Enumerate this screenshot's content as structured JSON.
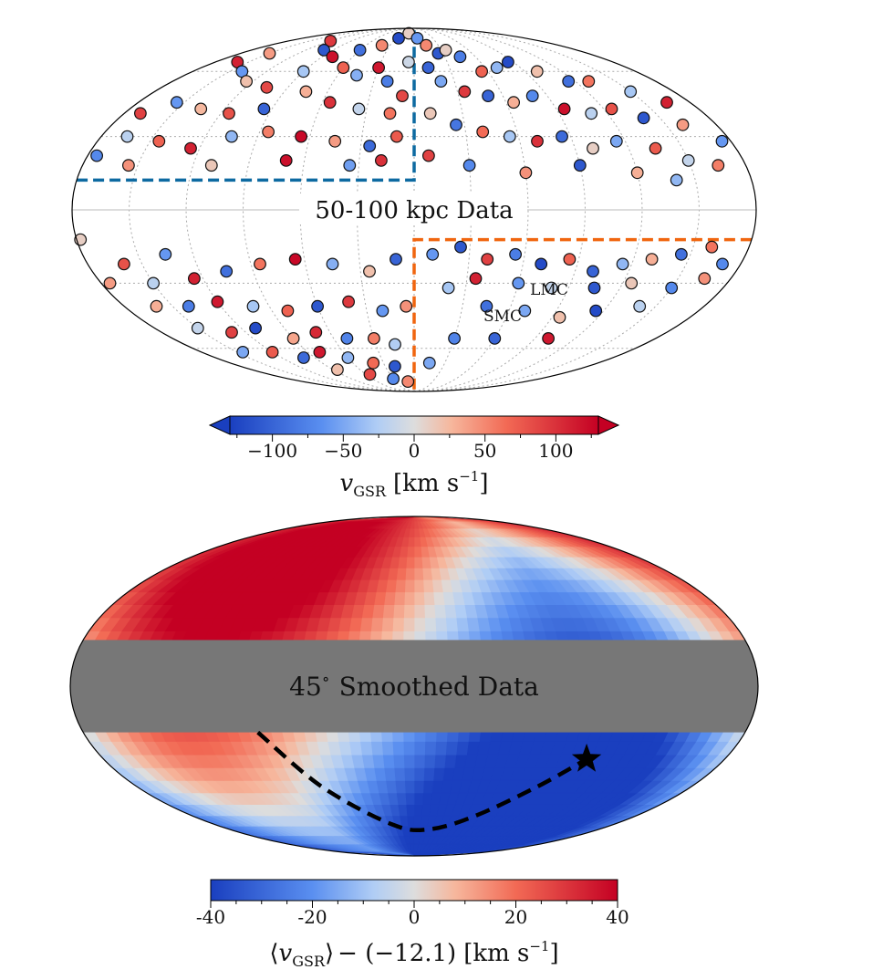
{
  "chart_data": [
    {
      "type": "scatter",
      "title": "50-100 kpc Data",
      "projection": "mollweide",
      "grid": true,
      "annotations": [
        "LMC",
        "SMC"
      ],
      "colorbar": {
        "label_main": "v",
        "label_sub": "GSR",
        "label_units": "[km s",
        "label_exp": "−1",
        "label_close": "]",
        "vmin": -130,
        "vmax": 130,
        "ticks": [
          -100,
          -50,
          0,
          50,
          100
        ],
        "tick_labels": [
          "−100",
          "−50",
          "0",
          "50",
          "100"
        ],
        "extend": "both"
      },
      "regions": [
        {
          "name": "north-west",
          "color": "#0d6aa1",
          "l_range": [
            0,
            180
          ],
          "b_range": [
            0,
            90
          ]
        },
        {
          "name": "south-east",
          "color": "#f0650f",
          "l_range": [
            -180,
            0
          ],
          "b_range": [
            -90,
            0
          ]
        }
      ],
      "points": [
        {
          "l": 120,
          "b": 78,
          "v": 95
        },
        {
          "l": 100,
          "b": 72,
          "v": -110
        },
        {
          "l": 150,
          "b": 70,
          "v": 40
        },
        {
          "l": 160,
          "b": 65,
          "v": 110
        },
        {
          "l": 140,
          "b": 60,
          "v": -60
        },
        {
          "l": 125,
          "b": 55,
          "v": 20
        },
        {
          "l": 105,
          "b": 52,
          "v": 85
        },
        {
          "l": 90,
          "b": 60,
          "v": -30
        },
        {
          "l": 80,
          "b": 68,
          "v": 120
        },
        {
          "l": 60,
          "b": 72,
          "v": -90
        },
        {
          "l": 40,
          "b": 75,
          "v": 50
        },
        {
          "l": 25,
          "b": 80,
          "v": -120
        },
        {
          "l": 12,
          "b": 84,
          "v": 10
        },
        {
          "l": 60,
          "b": 62,
          "v": 70
        },
        {
          "l": 45,
          "b": 58,
          "v": -45
        },
        {
          "l": 30,
          "b": 62,
          "v": 115
        },
        {
          "l": 20,
          "b": 55,
          "v": -80
        },
        {
          "l": 75,
          "b": 50,
          "v": 30
        },
        {
          "l": 55,
          "b": 45,
          "v": 100
        },
        {
          "l": 35,
          "b": 42,
          "v": -15
        },
        {
          "l": 15,
          "b": 40,
          "v": 60
        },
        {
          "l": 95,
          "b": 42,
          "v": -100
        },
        {
          "l": 115,
          "b": 40,
          "v": 80
        },
        {
          "l": 135,
          "b": 42,
          "v": 25
        },
        {
          "l": 155,
          "b": 45,
          "v": -60
        },
        {
          "l": 170,
          "b": 40,
          "v": 90
        },
        {
          "l": 165,
          "b": 30,
          "v": -20
        },
        {
          "l": 145,
          "b": 28,
          "v": 70
        },
        {
          "l": 125,
          "b": 25,
          "v": 110
        },
        {
          "l": 105,
          "b": 30,
          "v": -40
        },
        {
          "l": 85,
          "b": 32,
          "v": 55
        },
        {
          "l": 65,
          "b": 30,
          "v": 125
        },
        {
          "l": 45,
          "b": 28,
          "v": 40
        },
        {
          "l": 25,
          "b": 26,
          "v": -95
        },
        {
          "l": 10,
          "b": 30,
          "v": 75
        },
        {
          "l": 175,
          "b": 22,
          "v": -70
        },
        {
          "l": 155,
          "b": 18,
          "v": 45
        },
        {
          "l": 110,
          "b": 18,
          "v": 15
        },
        {
          "l": 70,
          "b": 20,
          "v": 120
        },
        {
          "l": 35,
          "b": 18,
          "v": -55
        },
        {
          "l": 18,
          "b": 20,
          "v": 100
        },
        {
          "l": 5,
          "b": 65,
          "v": -10
        },
        {
          "l": 8,
          "b": 48,
          "v": 85
        },
        {
          "l": -5,
          "b": 80,
          "v": -60
        },
        {
          "l": -15,
          "b": 75,
          "v": 50
        },
        {
          "l": -25,
          "b": 70,
          "v": -110
        },
        {
          "l": -35,
          "b": 72,
          "v": 10
        },
        {
          "l": -45,
          "b": 68,
          "v": -80
        },
        {
          "l": -55,
          "b": 60,
          "v": 70
        },
        {
          "l": -70,
          "b": 62,
          "v": -40
        },
        {
          "l": -85,
          "b": 65,
          "v": -120
        },
        {
          "l": -100,
          "b": 60,
          "v": 20
        },
        {
          "l": -115,
          "b": 55,
          "v": -90
        },
        {
          "l": -130,
          "b": 55,
          "v": 60
        },
        {
          "l": -150,
          "b": 50,
          "v": -30
        },
        {
          "l": -165,
          "b": 45,
          "v": 110
        },
        {
          "l": -20,
          "b": 55,
          "v": -50
        },
        {
          "l": -35,
          "b": 50,
          "v": 95
        },
        {
          "l": -50,
          "b": 48,
          "v": -100
        },
        {
          "l": -65,
          "b": 45,
          "v": 30
        },
        {
          "l": -80,
          "b": 48,
          "v": -70
        },
        {
          "l": -95,
          "b": 42,
          "v": 120
        },
        {
          "l": -110,
          "b": 40,
          "v": -20
        },
        {
          "l": -125,
          "b": 42,
          "v": 80
        },
        {
          "l": -140,
          "b": 38,
          "v": -110
        },
        {
          "l": -160,
          "b": 35,
          "v": 40
        },
        {
          "l": -175,
          "b": 28,
          "v": -60
        },
        {
          "l": -10,
          "b": 40,
          "v": 15
        },
        {
          "l": -25,
          "b": 35,
          "v": -85
        },
        {
          "l": -40,
          "b": 32,
          "v": 65
        },
        {
          "l": -55,
          "b": 30,
          "v": -30
        },
        {
          "l": -70,
          "b": 28,
          "v": 100
        },
        {
          "l": -85,
          "b": 30,
          "v": -95
        },
        {
          "l": -100,
          "b": 25,
          "v": 10
        },
        {
          "l": -115,
          "b": 28,
          "v": -50
        },
        {
          "l": -135,
          "b": 25,
          "v": 75
        },
        {
          "l": -150,
          "b": 20,
          "v": -15
        },
        {
          "l": -165,
          "b": 18,
          "v": 55
        },
        {
          "l": -30,
          "b": 18,
          "v": -70
        },
        {
          "l": -60,
          "b": 15,
          "v": 45
        },
        {
          "l": -90,
          "b": 18,
          "v": -110
        },
        {
          "l": -120,
          "b": 15,
          "v": 30
        },
        {
          "l": -140,
          "b": 12,
          "v": -40
        },
        {
          "l": -8,
          "b": 22,
          "v": 90
        },
        {
          "l": -12,
          "b": 62,
          "v": -100
        },
        {
          "l": 135,
          "b": -18,
          "v": -60
        },
        {
          "l": 160,
          "b": -22,
          "v": 80
        },
        {
          "l": 175,
          "b": -30,
          "v": 40
        },
        {
          "l": 150,
          "b": -30,
          "v": -20
        },
        {
          "l": 125,
          "b": -28,
          "v": 110
        },
        {
          "l": 105,
          "b": -25,
          "v": -90
        },
        {
          "l": 85,
          "b": -22,
          "v": 60
        },
        {
          "l": 65,
          "b": -20,
          "v": 125
        },
        {
          "l": 45,
          "b": -22,
          "v": -45
        },
        {
          "l": 25,
          "b": -25,
          "v": 20
        },
        {
          "l": 10,
          "b": -20,
          "v": -100
        },
        {
          "l": 160,
          "b": -40,
          "v": 30
        },
        {
          "l": 140,
          "b": -40,
          "v": -80
        },
        {
          "l": 120,
          "b": -38,
          "v": 115
        },
        {
          "l": 100,
          "b": -40,
          "v": -30
        },
        {
          "l": 80,
          "b": -42,
          "v": 70
        },
        {
          "l": 60,
          "b": -40,
          "v": -110
        },
        {
          "l": 40,
          "b": -38,
          "v": 95
        },
        {
          "l": 20,
          "b": -42,
          "v": -60
        },
        {
          "l": 5,
          "b": -40,
          "v": 45
        },
        {
          "l": 150,
          "b": -50,
          "v": -15
        },
        {
          "l": 130,
          "b": -52,
          "v": 90
        },
        {
          "l": 110,
          "b": -50,
          "v": -120
        },
        {
          "l": 90,
          "b": -55,
          "v": 35
        },
        {
          "l": 70,
          "b": -52,
          "v": 105
        },
        {
          "l": 50,
          "b": -55,
          "v": -75
        },
        {
          "l": 30,
          "b": -55,
          "v": 55
        },
        {
          "l": 15,
          "b": -58,
          "v": -25
        },
        {
          "l": 120,
          "b": -62,
          "v": 75
        },
        {
          "l": 100,
          "b": -65,
          "v": -95
        },
        {
          "l": 80,
          "b": -62,
          "v": 115
        },
        {
          "l": 60,
          "b": -65,
          "v": -40
        },
        {
          "l": 40,
          "b": -68,
          "v": 65
        },
        {
          "l": 20,
          "b": -70,
          "v": -110
        },
        {
          "l": 85,
          "b": -72,
          "v": 20
        },
        {
          "l": 55,
          "b": -75,
          "v": 85
        },
        {
          "l": 30,
          "b": -78,
          "v": -70
        },
        {
          "l": 10,
          "b": -80,
          "v": 50
        },
        {
          "l": 178,
          "b": -12,
          "v": 10
        },
        {
          "l": 145,
          "b": -62,
          "v": -50
        },
        {
          "l": -10,
          "b": -18,
          "v": -60
        },
        {
          "l": -25,
          "b": -15,
          "v": -110
        },
        {
          "l": -40,
          "b": -20,
          "v": 90
        },
        {
          "l": -55,
          "b": -18,
          "v": -80
        },
        {
          "l": -70,
          "b": -22,
          "v": -120
        },
        {
          "l": -85,
          "b": -20,
          "v": 70
        },
        {
          "l": -100,
          "b": -25,
          "v": -100
        },
        {
          "l": -115,
          "b": -22,
          "v": -40
        },
        {
          "l": -130,
          "b": -20,
          "v": 30
        },
        {
          "l": -145,
          "b": -18,
          "v": -90
        },
        {
          "l": -160,
          "b": -15,
          "v": 60
        },
        {
          "l": -170,
          "b": -22,
          "v": -70
        },
        {
          "l": -20,
          "b": -32,
          "v": -30
        },
        {
          "l": -35,
          "b": -28,
          "v": 110
        },
        {
          "l": -60,
          "b": -30,
          "v": -60
        },
        {
          "l": -80,
          "b": -32,
          "v": -15
        },
        {
          "l": -105,
          "b": -32,
          "v": -110
        },
        {
          "l": -125,
          "b": -30,
          "v": 15
        },
        {
          "l": -150,
          "b": -32,
          "v": -70
        },
        {
          "l": -165,
          "b": -28,
          "v": 45
        },
        {
          "l": -45,
          "b": -40,
          "v": -90
        },
        {
          "l": -70,
          "b": -42,
          "v": -50
        },
        {
          "l": -95,
          "b": -45,
          "v": 20
        },
        {
          "l": -115,
          "b": -42,
          "v": -120
        },
        {
          "l": -140,
          "b": -40,
          "v": -20
        },
        {
          "l": -30,
          "b": -55,
          "v": -75
        },
        {
          "l": -60,
          "b": -55,
          "v": -100
        },
        {
          "l": -100,
          "b": -55,
          "v": 115
        },
        {
          "l": -15,
          "b": -68,
          "v": -50
        }
      ]
    },
    {
      "type": "heatmap",
      "title": "45",
      "title_degree": "∘",
      "title_rest": "Smoothed Data",
      "projection": "mollweide",
      "masked_band_b": [
        -20,
        20
      ],
      "mask_color": "#777777",
      "reference_value": -12.1,
      "colorbar": {
        "label_main": "v",
        "label_sub": "GSR",
        "label_mid": "− (−12.1)",
        "label_units": "[km s",
        "label_exp": "−1",
        "label_close": "]",
        "vmin": -40,
        "vmax": 40,
        "ticks": [
          -40,
          -20,
          0,
          20,
          40
        ],
        "tick_labels": [
          "-40",
          "-20",
          "0",
          "20",
          "40"
        ],
        "extend": "neither"
      },
      "blobs": [
        {
          "l": 100,
          "b": 60,
          "amp": 52,
          "width": 48
        },
        {
          "l": -60,
          "b": 60,
          "amp": -12,
          "width": 45
        },
        {
          "l": -100,
          "b": -45,
          "amp": -58,
          "width": 52
        },
        {
          "l": 150,
          "b": -35,
          "amp": 22,
          "width": 40
        },
        {
          "l": 0,
          "b": -70,
          "amp": -15,
          "width": 40
        }
      ],
      "lmc_track": {
        "points": [
          [
            85,
            -20
          ],
          [
            60,
            -45
          ],
          [
            20,
            -65
          ],
          [
            -15,
            -68
          ],
          [
            -50,
            -60
          ],
          [
            -80,
            -45
          ],
          [
            -100,
            -32
          ]
        ],
        "marker_at": [
          -100,
          -32
        ],
        "marker": "star-icon"
      }
    }
  ]
}
